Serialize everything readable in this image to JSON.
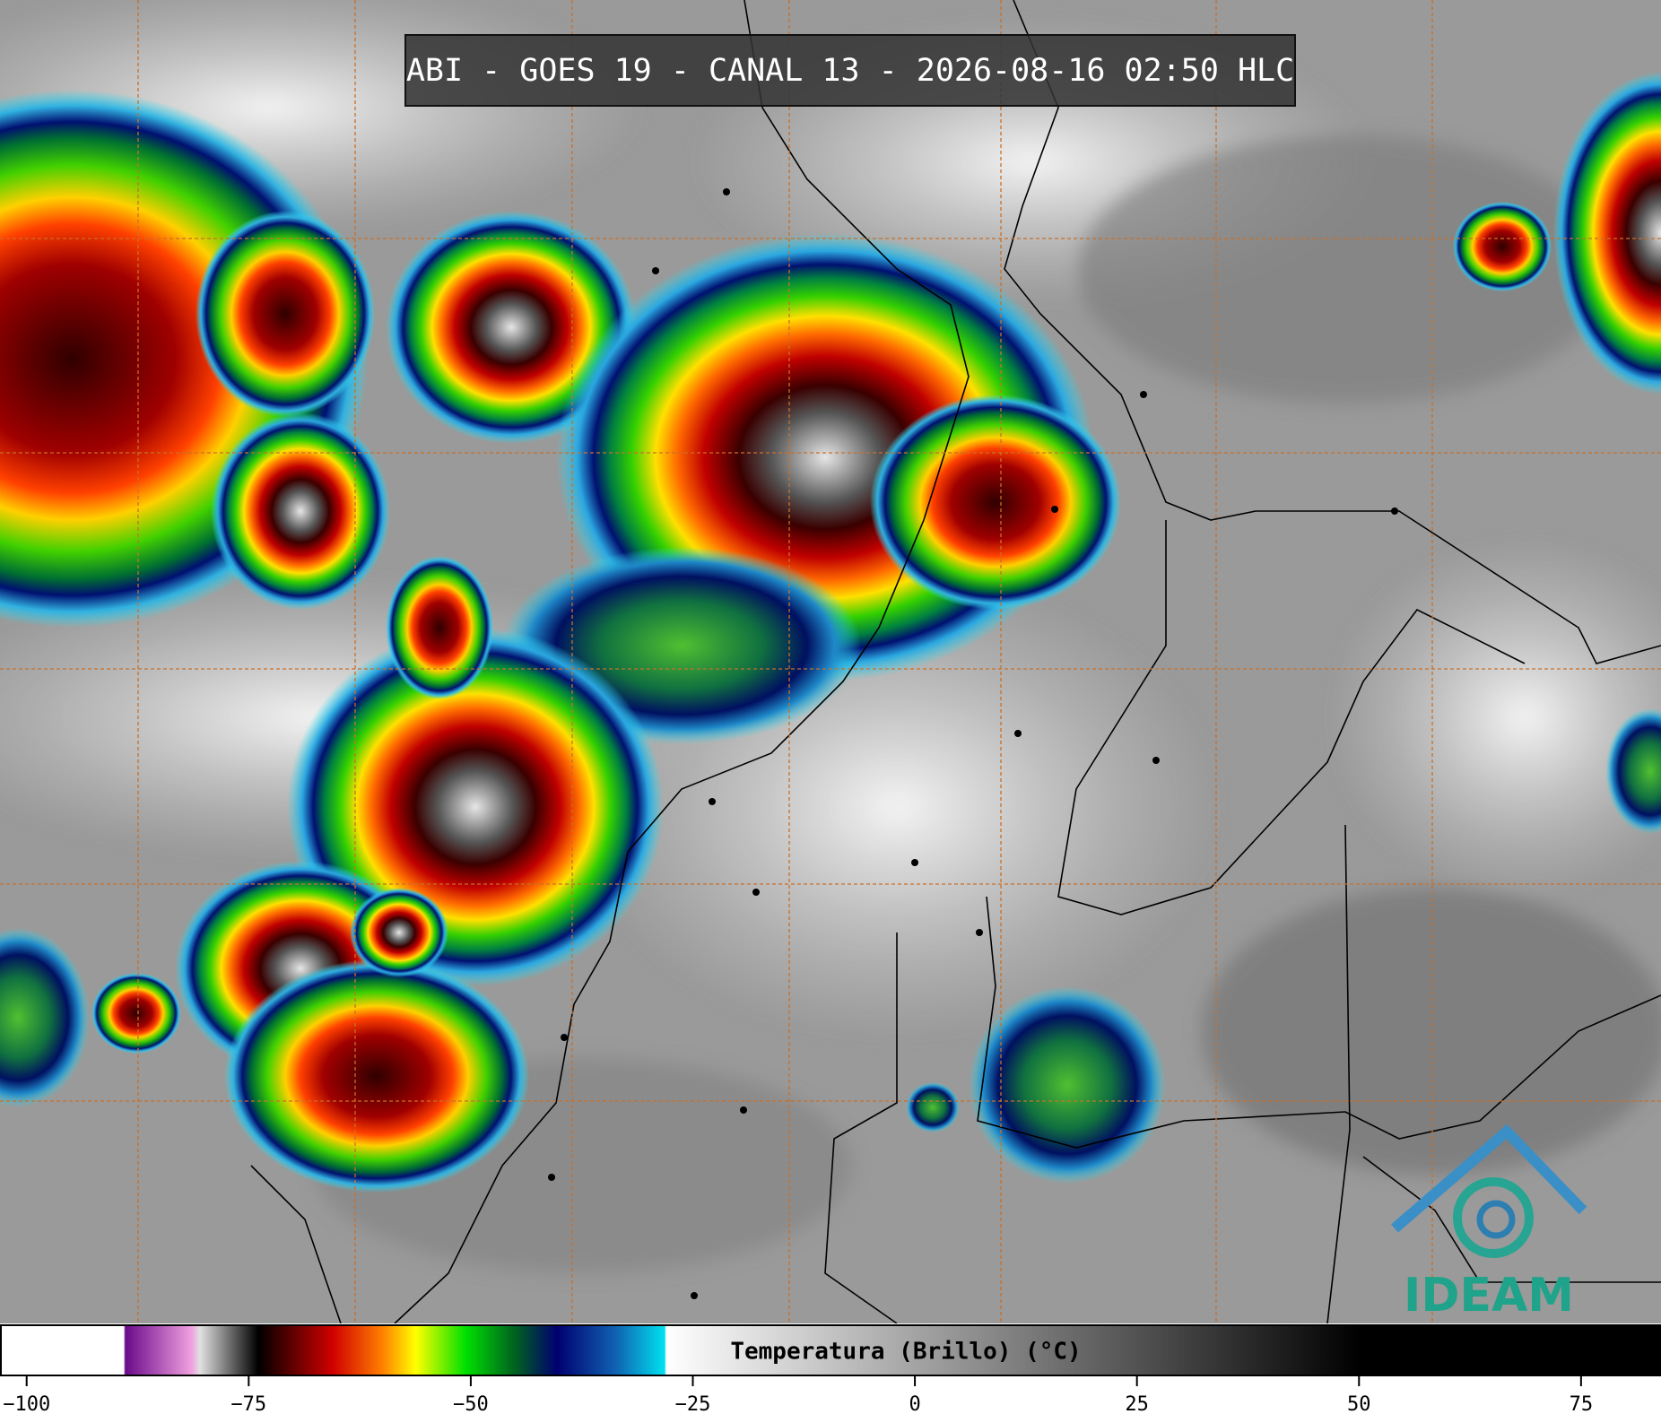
{
  "header": {
    "title": "ABI - GOES 19 - CANAL 13 - 2026-08-16 02:50 HLC"
  },
  "colorbar": {
    "label": "Temperatura (Brillo) (°C)",
    "xlim": [
      -103,
      84
    ],
    "ticks": [
      {
        "value": -100,
        "label": "−100"
      },
      {
        "value": -75,
        "label": "−75"
      },
      {
        "value": -50,
        "label": "−50"
      },
      {
        "value": -25,
        "label": "−25"
      },
      0,
      25,
      50,
      75
    ]
  },
  "logo": {
    "text": "IDEAM"
  }
}
